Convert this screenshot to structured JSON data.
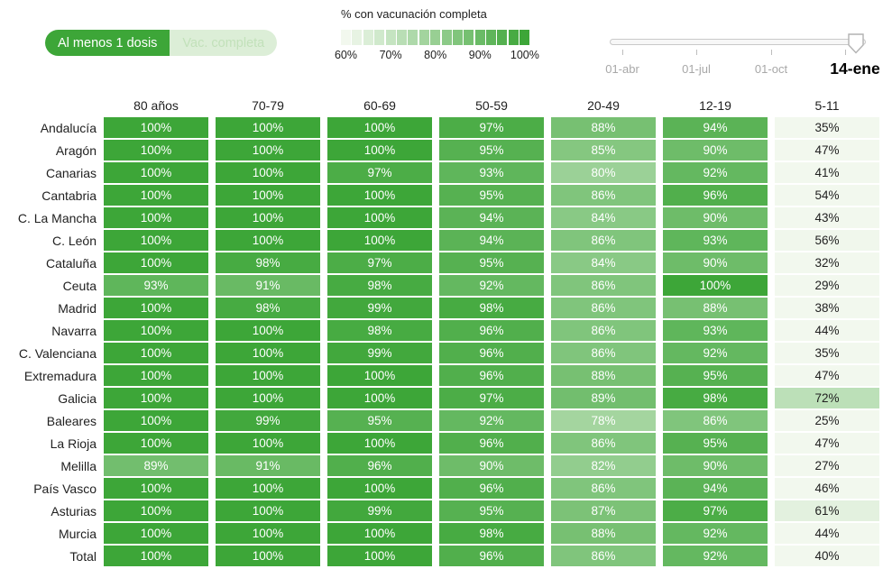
{
  "toggle": {
    "options": [
      {
        "label": "Al menos 1 dosis",
        "active": true
      },
      {
        "label": "Vac. completa",
        "active": false
      }
    ]
  },
  "legend": {
    "title": "% con vacunación completa",
    "tick_labels": [
      "60%",
      "70%",
      "80%",
      "90%",
      "100%"
    ],
    "steps": 17
  },
  "slider": {
    "tick_labels": [
      "01-abr",
      "01-jul",
      "01-oct"
    ],
    "current_label": "14-ene"
  },
  "colors": {
    "accent": "#3da638",
    "scale_min": "#f2f8ee",
    "toggle_inactive_bg": "#dceed7",
    "toggle_inactive_text": "#c2e1ba",
    "text_dark": "#212121",
    "text_gray": "#a8a8a8"
  },
  "chart_data": {
    "type": "heatmap",
    "title": "% con vacunación completa",
    "unit": "%",
    "columns": [
      "80 años",
      "70-79",
      "60-69",
      "50-59",
      "20-49",
      "12-19",
      "5-11"
    ],
    "rows": [
      {
        "label": "Andalucía",
        "values": [
          100,
          100,
          100,
          97,
          88,
          94,
          35
        ]
      },
      {
        "label": "Aragón",
        "values": [
          100,
          100,
          100,
          95,
          85,
          90,
          47
        ]
      },
      {
        "label": "Canarias",
        "values": [
          100,
          100,
          97,
          93,
          80,
          92,
          41
        ]
      },
      {
        "label": "Cantabria",
        "values": [
          100,
          100,
          100,
          95,
          86,
          96,
          54
        ]
      },
      {
        "label": "C. La Mancha",
        "values": [
          100,
          100,
          100,
          94,
          84,
          90,
          43
        ]
      },
      {
        "label": "C. León",
        "values": [
          100,
          100,
          100,
          94,
          86,
          93,
          56
        ]
      },
      {
        "label": "Cataluña",
        "values": [
          100,
          98,
          97,
          95,
          84,
          90,
          32
        ]
      },
      {
        "label": "Ceuta",
        "values": [
          93,
          91,
          98,
          92,
          86,
          100,
          29
        ]
      },
      {
        "label": "Madrid",
        "values": [
          100,
          98,
          99,
          98,
          86,
          88,
          38
        ]
      },
      {
        "label": "Navarra",
        "values": [
          100,
          100,
          98,
          96,
          86,
          93,
          44
        ]
      },
      {
        "label": "C. Valenciana",
        "values": [
          100,
          100,
          99,
          96,
          86,
          92,
          35
        ]
      },
      {
        "label": "Extremadura",
        "values": [
          100,
          100,
          100,
          96,
          88,
          95,
          47
        ]
      },
      {
        "label": "Galicia",
        "values": [
          100,
          100,
          100,
          97,
          89,
          98,
          72
        ]
      },
      {
        "label": "Baleares",
        "values": [
          100,
          99,
          95,
          92,
          78,
          86,
          25
        ]
      },
      {
        "label": "La Rioja",
        "values": [
          100,
          100,
          100,
          96,
          86,
          95,
          47
        ]
      },
      {
        "label": "Melilla",
        "values": [
          89,
          91,
          96,
          90,
          82,
          90,
          27
        ]
      },
      {
        "label": "País Vasco",
        "values": [
          100,
          100,
          100,
          96,
          86,
          94,
          46
        ]
      },
      {
        "label": "Asturias",
        "values": [
          100,
          100,
          99,
          95,
          87,
          97,
          61
        ]
      },
      {
        "label": "Murcia",
        "values": [
          100,
          100,
          100,
          98,
          88,
          92,
          44
        ]
      },
      {
        "label": "Total",
        "values": [
          100,
          100,
          100,
          96,
          86,
          92,
          40
        ]
      }
    ],
    "color_scale": {
      "min_label": "60%",
      "max_label": "100%",
      "min_color": "#f2f8ee",
      "max_color": "#3da638"
    },
    "legend_position": "top",
    "grid": false
  }
}
